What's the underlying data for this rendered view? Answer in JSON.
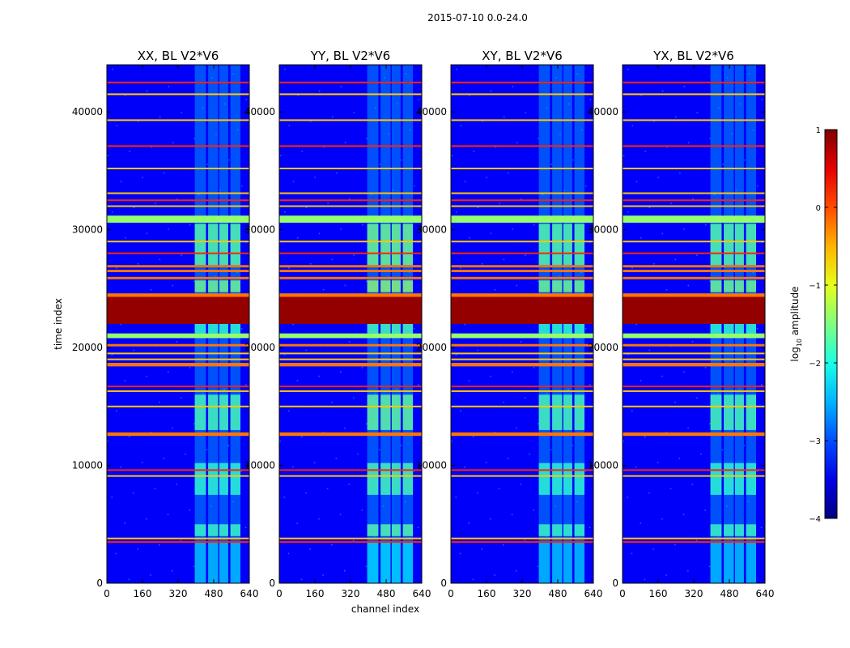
{
  "figure": {
    "suptitle": "2015-07-10 0.0-24.0"
  },
  "chart_data": {
    "type": "heatmap",
    "panels": [
      {
        "title": "XX, BL V2*V6",
        "polarization": "XX",
        "baseline": "V2*V6"
      },
      {
        "title": "YY, BL V2*V6",
        "polarization": "YY",
        "baseline": "V2*V6"
      },
      {
        "title": "XY, BL V2*V6",
        "polarization": "XY",
        "baseline": "V2*V6"
      },
      {
        "title": "YX, BL V2*V6",
        "polarization": "YX",
        "baseline": "V2*V6"
      }
    ],
    "xlabel": "channel index",
    "ylabel": "time index",
    "xlim": [
      0,
      640
    ],
    "ylim": [
      0,
      44000
    ],
    "xticks": [
      0,
      160,
      320,
      480,
      640
    ],
    "yticks": [
      0,
      10000,
      20000,
      30000,
      40000
    ],
    "colorbar": {
      "label": "log10 amplitude",
      "label_base": "log",
      "label_sub": "10",
      "label_rest": " amplitude",
      "range": [
        -4,
        1
      ],
      "ticks": [
        1,
        0,
        -1,
        -2,
        -3,
        -4
      ],
      "tick_labels": [
        "1",
        "0",
        "−1",
        "−2",
        "−3",
        "−4"
      ],
      "colormap": "jet"
    },
    "background_level": -3.4,
    "rfi_channel_bands": [
      [
        395,
        445
      ],
      [
        455,
        500
      ],
      [
        505,
        545
      ],
      [
        555,
        600
      ]
    ],
    "saturated_time_ranges": [
      [
        22000,
        24300
      ]
    ],
    "high_time_ranges": [
      [
        30600,
        31200
      ],
      [
        20800,
        21200
      ]
    ],
    "bright_time_ranges": [
      [
        26800,
        27000
      ],
      [
        26400,
        26600
      ],
      [
        25800,
        26000
      ],
      [
        24300,
        24600
      ],
      [
        20100,
        20300
      ],
      [
        18400,
        18700
      ],
      [
        12500,
        12800
      ]
    ],
    "rfi_lines": [
      42500,
      41500,
      39300,
      37100,
      35200,
      33100,
      32500,
      32000,
      29000,
      28000,
      19500,
      19000,
      16700,
      16300,
      15000,
      9600,
      9100,
      3800,
      3500
    ],
    "rfi_blocks": [
      {
        "t": [
          27000,
          30500
        ],
        "level": -1.5
      },
      {
        "t": [
          24700,
          25700
        ],
        "level": -1.3
      },
      {
        "t": [
          21200,
          22000
        ],
        "level": -1.8
      },
      {
        "t": [
          13000,
          16000
        ],
        "level": -1.6
      },
      {
        "t": [
          7500,
          10200
        ],
        "level": -1.8
      },
      {
        "t": [
          4000,
          5000
        ],
        "level": -1.7
      },
      {
        "t": [
          0,
          3500
        ],
        "level": -2.6
      }
    ]
  }
}
